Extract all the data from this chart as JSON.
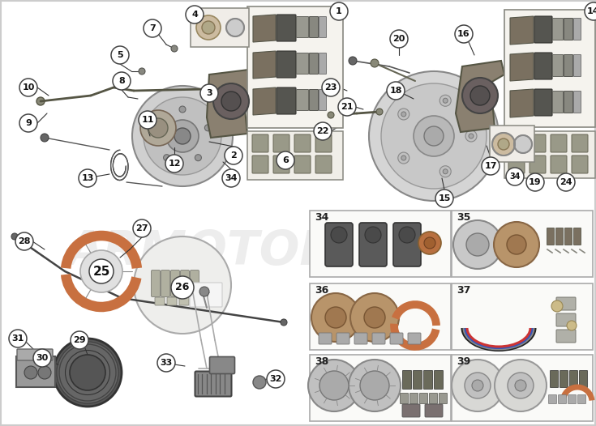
{
  "bg": "#ffffff",
  "wm_text": "ARMOTORS",
  "wm_color": "#cccccc",
  "wm_alpha": 0.35,
  "circle_fc": "#ffffff",
  "circle_ec": "#444444",
  "line_color": "#333333",
  "rotor_outer": "#c8c8c8",
  "rotor_mid": "#b5b5b5",
  "rotor_inner": "#a0a0a0",
  "caliper_color": "#8a8070",
  "caliper_ec": "#555555",
  "pad_dark": "#6a6a5a",
  "pad_mid": "#7a7a6a",
  "pad_light": "#9a9a8a",
  "box_fc": "#f8f8f5",
  "box_ec": "#999999",
  "shoe_color": "#c87040",
  "cable_color": "#555544",
  "booster_color": "#777777",
  "mc_color": "#aaaaaa",
  "pedal_color": "#999999",
  "brake_line_color": "#777766",
  "sensor_color": "#555555",
  "kit_bg": "#eeeeee",
  "hardware_color": "#aaaaaa"
}
